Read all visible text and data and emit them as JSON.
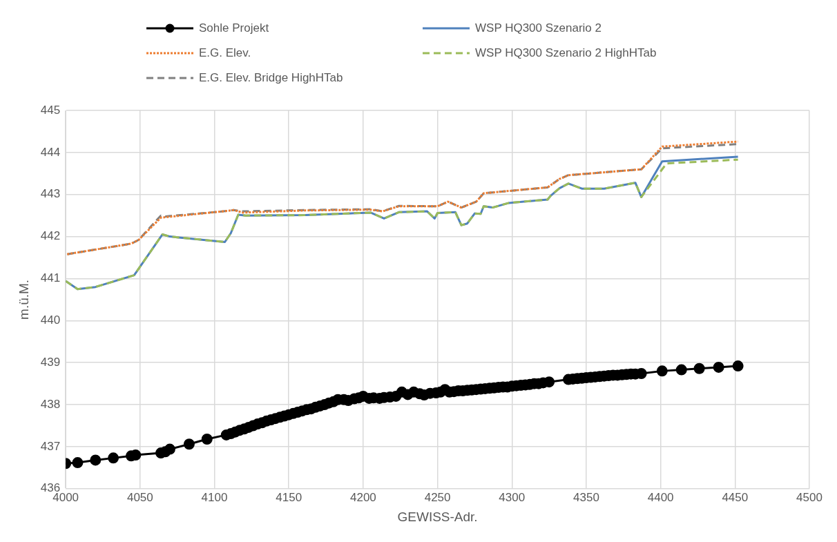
{
  "chart_data": {
    "type": "line",
    "xlabel": "GEWISS-Adr.",
    "ylabel": "m.ü.M.",
    "xlim": [
      4000,
      4500
    ],
    "xticks": [
      4000,
      4050,
      4100,
      4150,
      4200,
      4250,
      4300,
      4350,
      4400,
      4450,
      4500
    ],
    "ylim": [
      436,
      445
    ],
    "yticks": [
      436,
      437,
      438,
      439,
      440,
      441,
      442,
      443,
      444,
      445
    ],
    "grid": true,
    "legend": "top",
    "series": [
      {
        "name": "Sohle Projekt",
        "color": "#000000",
        "marker": "circle",
        "line_style": "solid",
        "x": [
          4000,
          4008,
          4020,
          4032,
          4044,
          4047,
          4064,
          4067,
          4070,
          4083,
          4095,
          4108,
          4111,
          4114,
          4117,
          4120,
          4123,
          4126,
          4129,
          4132,
          4135,
          4138,
          4141,
          4144,
          4147,
          4150,
          4153,
          4156,
          4159,
          4162,
          4165,
          4168,
          4171,
          4174,
          4177,
          4180,
          4183,
          4187,
          4190,
          4194,
          4197,
          4200,
          4204,
          4207,
          4211,
          4214,
          4218,
          4222,
          4226,
          4230,
          4234,
          4238,
          4241,
          4245,
          4249,
          4252,
          4255,
          4258,
          4261,
          4264,
          4267,
          4270,
          4273,
          4276,
          4279,
          4282,
          4285,
          4288,
          4291,
          4294,
          4297,
          4300,
          4303,
          4306,
          4309,
          4312,
          4315,
          4318,
          4321,
          4325,
          4338,
          4341,
          4344,
          4347,
          4350,
          4353,
          4356,
          4359,
          4362,
          4365,
          4368,
          4371,
          4374,
          4377,
          4380,
          4383,
          4387,
          4401,
          4414,
          4426,
          4439,
          4452
        ],
        "values": [
          436.6,
          436.62,
          436.68,
          436.73,
          436.78,
          436.8,
          436.85,
          436.88,
          436.94,
          437.06,
          437.18,
          437.28,
          437.31,
          437.35,
          437.39,
          437.42,
          437.46,
          437.5,
          437.54,
          437.57,
          437.61,
          437.64,
          437.67,
          437.7,
          437.73,
          437.76,
          437.79,
          437.82,
          437.85,
          437.88,
          437.9,
          437.94,
          437.97,
          438.0,
          438.04,
          438.07,
          438.12,
          438.12,
          438.1,
          438.14,
          438.16,
          438.2,
          438.15,
          438.16,
          438.15,
          438.17,
          438.18,
          438.2,
          438.3,
          438.24,
          438.3,
          438.26,
          438.23,
          438.27,
          438.28,
          438.3,
          438.36,
          438.3,
          438.31,
          438.33,
          438.33,
          438.34,
          438.35,
          438.36,
          438.37,
          438.38,
          438.39,
          438.4,
          438.41,
          438.42,
          438.42,
          438.44,
          438.45,
          438.46,
          438.47,
          438.48,
          438.5,
          438.5,
          438.52,
          438.54,
          438.6,
          438.61,
          438.62,
          438.63,
          438.64,
          438.65,
          438.66,
          438.67,
          438.68,
          438.69,
          438.7,
          438.7,
          438.71,
          438.72,
          438.73,
          438.73,
          438.74,
          438.8,
          438.83,
          438.86,
          438.89,
          438.92
        ]
      },
      {
        "name": "WSP HQ300 Szenario 2",
        "color": "#4f81bd",
        "marker": "none",
        "line_style": "solid",
        "x": [
          4000,
          4008,
          4020,
          4046,
          4065,
          4070,
          4107,
          4111,
          4116,
          4121,
          4161,
          4205,
          4214,
          4224,
          4243,
          4248,
          4250,
          4262,
          4266,
          4270,
          4275,
          4279,
          4281,
          4287,
          4298,
          4324,
          4326,
          4332,
          4338,
          4347,
          4362,
          4383,
          4387,
          4401,
          4452
        ],
        "values": [
          440.94,
          440.75,
          440.8,
          441.08,
          442.05,
          442.0,
          441.87,
          442.08,
          442.52,
          442.5,
          442.51,
          442.57,
          442.43,
          442.58,
          442.6,
          442.43,
          442.56,
          442.58,
          442.27,
          442.31,
          442.55,
          442.54,
          442.72,
          442.69,
          442.8,
          442.88,
          442.97,
          443.15,
          443.26,
          443.14,
          443.14,
          443.28,
          442.94,
          443.79,
          443.9
        ]
      },
      {
        "name": "E.G. Elev.",
        "color": "#ed7d31",
        "marker": "none",
        "line_style": "dotted",
        "x": [
          4001,
          4044,
          4049,
          4064,
          4067,
          4106,
          4113,
          4119,
          4161,
          4205,
          4213,
          4224,
          4250,
          4257,
          4266,
          4276,
          4281,
          4324,
          4332,
          4338,
          4387,
          4401,
          4452
        ],
        "values": [
          441.58,
          441.83,
          441.92,
          442.45,
          442.46,
          442.6,
          442.63,
          442.57,
          442.62,
          442.64,
          442.6,
          442.72,
          442.72,
          442.83,
          442.69,
          442.83,
          443.03,
          443.17,
          443.37,
          443.46,
          443.6,
          444.14,
          444.26
        ]
      },
      {
        "name": "WSP HQ300 Szenario 2 HighHTab",
        "color": "#9bbb59",
        "marker": "none",
        "line_style": "dashed",
        "x": [
          4000,
          4008,
          4020,
          4046,
          4065,
          4070,
          4107,
          4111,
          4116,
          4121,
          4161,
          4205,
          4214,
          4224,
          4243,
          4248,
          4250,
          4262,
          4266,
          4270,
          4275,
          4279,
          4281,
          4287,
          4298,
          4324,
          4326,
          4332,
          4338,
          4347,
          4362,
          4383,
          4387,
          4404,
          4452
        ],
        "values": [
          440.94,
          440.75,
          440.8,
          441.08,
          442.05,
          442.0,
          441.87,
          442.08,
          442.52,
          442.5,
          442.51,
          442.57,
          442.43,
          442.58,
          442.6,
          442.43,
          442.56,
          442.58,
          442.27,
          442.31,
          442.55,
          442.54,
          442.72,
          442.69,
          442.8,
          442.88,
          442.97,
          443.15,
          443.26,
          443.14,
          443.14,
          443.28,
          442.94,
          443.74,
          443.83
        ]
      },
      {
        "name": "E.G. Elev. Bridge HighHTab",
        "color": "#808080",
        "marker": "none",
        "line_style": "dashed",
        "x": [
          4001,
          4044,
          4049,
          4064,
          4067,
          4106,
          4113,
          4119,
          4161,
          4205,
          4213,
          4224,
          4250,
          4257,
          4266,
          4276,
          4281,
          4324,
          4332,
          4338,
          4387,
          4401,
          4452
        ],
        "values": [
          441.58,
          441.83,
          441.92,
          442.5,
          442.48,
          442.6,
          442.63,
          442.6,
          442.63,
          442.65,
          442.6,
          442.73,
          442.72,
          442.83,
          442.69,
          442.83,
          443.03,
          443.17,
          443.37,
          443.46,
          443.6,
          444.1,
          444.2
        ]
      }
    ]
  }
}
